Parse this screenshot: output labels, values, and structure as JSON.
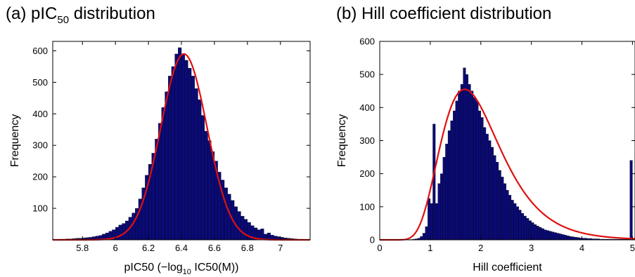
{
  "chart_data": [
    {
      "type": "bar",
      "panel": "(a)",
      "title": "pIC",
      "title_subscript": "50",
      "title_suffix": " distribution",
      "xlabel_pre": "pIC50 (−log",
      "xlabel_sub": "10",
      "xlabel_post": " IC50(M))",
      "ylabel": "Frequency",
      "xlim": [
        5.62,
        7.18
      ],
      "ylim": [
        0,
        630
      ],
      "xticks": [
        5.8,
        6,
        6.2,
        6.4,
        6.6,
        6.8,
        7
      ],
      "xtick_labels": [
        "5.8",
        "6",
        "6.2",
        "6.4",
        "6.6",
        "6.8",
        "7"
      ],
      "yticks": [
        100,
        200,
        300,
        400,
        500,
        600
      ],
      "ytick_labels": [
        "100",
        "200",
        "300",
        "400",
        "500",
        "600"
      ],
      "bin_start": 5.62,
      "bin_width": 0.02,
      "values": [
        1,
        1,
        2,
        2,
        3,
        3,
        4,
        5,
        5,
        6,
        7,
        8,
        10,
        12,
        14,
        18,
        22,
        27,
        32,
        40,
        47,
        52,
        60,
        72,
        85,
        100,
        130,
        165,
        205,
        240,
        275,
        320,
        370,
        420,
        470,
        520,
        550,
        590,
        610,
        590,
        570,
        545,
        520,
        480,
        445,
        395,
        345,
        315,
        280,
        250,
        215,
        190,
        165,
        145,
        125,
        105,
        90,
        75,
        65,
        55,
        45,
        38,
        32,
        35,
        18,
        22,
        15,
        12,
        10,
        8,
        6,
        5,
        4,
        3,
        2,
        2,
        1,
        1
      ],
      "fit": {
        "type": "gaussian",
        "peak": 590,
        "mean": 6.415,
        "sd": 0.14
      },
      "bar_color": "#0a0a78",
      "fit_color": "#e01010"
    },
    {
      "type": "bar",
      "panel": "(b)",
      "title": "Hill coefficient distribution",
      "xlabel": "Hill coefficient",
      "ylabel": "Frequency",
      "xlim": [
        0,
        5.05
      ],
      "ylim": [
        0,
        600
      ],
      "xticks": [
        0,
        1,
        2,
        3,
        4,
        5
      ],
      "xtick_labels": [
        "0",
        "1",
        "2",
        "3",
        "4",
        "5"
      ],
      "yticks": [
        0,
        100,
        200,
        300,
        400,
        500,
        600
      ],
      "ytick_labels": [
        "0",
        "100",
        "200",
        "300",
        "400",
        "500",
        "600"
      ],
      "bin_start": 0,
      "bin_width": 0.05,
      "values": [
        0,
        0,
        0,
        0,
        0,
        0,
        0,
        0,
        0,
        0,
        0,
        0,
        1,
        2,
        3,
        5,
        10,
        20,
        40,
        125,
        110,
        350,
        110,
        170,
        200,
        250,
        290,
        330,
        360,
        390,
        420,
        450,
        470,
        520,
        500,
        470,
        450,
        430,
        420,
        390,
        370,
        340,
        320,
        300,
        280,
        255,
        235,
        210,
        190,
        170,
        150,
        135,
        120,
        110,
        100,
        90,
        80,
        72,
        65,
        58,
        52,
        46,
        42,
        38,
        34,
        30,
        28,
        26,
        24,
        22,
        20,
        18,
        16,
        14,
        12,
        10,
        9,
        8,
        7,
        6,
        5,
        5,
        4,
        4,
        3,
        3,
        3,
        2,
        2,
        2,
        2,
        2,
        2,
        2,
        2,
        2,
        2,
        2,
        2,
        240,
        0
      ],
      "fit": {
        "type": "lognormal",
        "peak": 455,
        "mode": 1.68,
        "sigma": 0.35
      },
      "bar_color": "#0a0a78",
      "fit_color": "#e01010"
    }
  ]
}
